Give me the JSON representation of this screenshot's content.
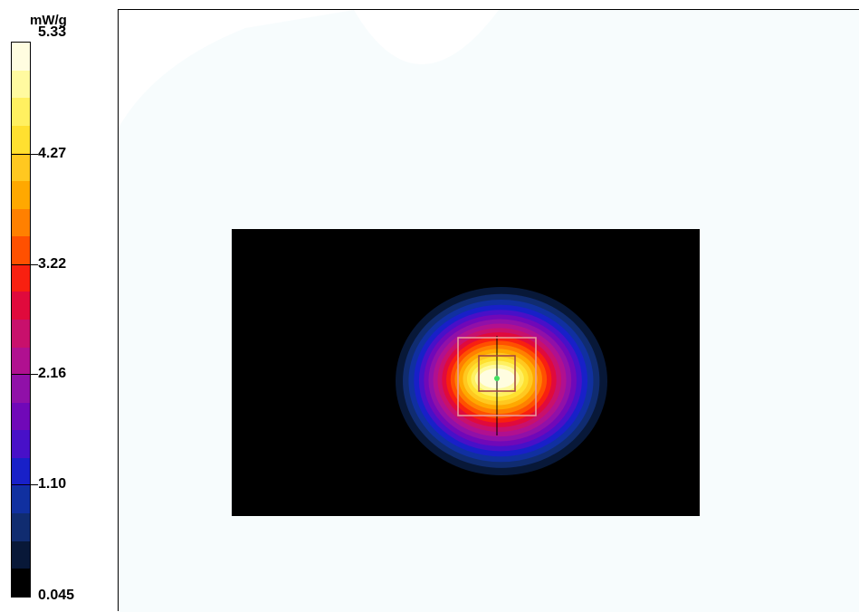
{
  "chart_data": {
    "type": "heatmap",
    "unit": "mW/g",
    "colorbar_ticks": [
      "5.33",
      "4.27",
      "3.22",
      "2.16",
      "1.10",
      "0.045"
    ],
    "value_range": [
      0.045,
      5.33
    ],
    "colorbar_colors": [
      "#fffde0",
      "#fffaa0",
      "#fff060",
      "#ffe030",
      "#ffc820",
      "#ffa800",
      "#ff8000",
      "#ff5000",
      "#f82010",
      "#e00a3c",
      "#c8106c",
      "#b01090",
      "#9010a8",
      "#7008b8",
      "#4810c8",
      "#1820c8",
      "#1030a0",
      "#102c70",
      "#081838",
      "#000000"
    ],
    "peak_value": 5.33,
    "background_color": "#f7fcfd",
    "scan_area_color": "#000000"
  }
}
